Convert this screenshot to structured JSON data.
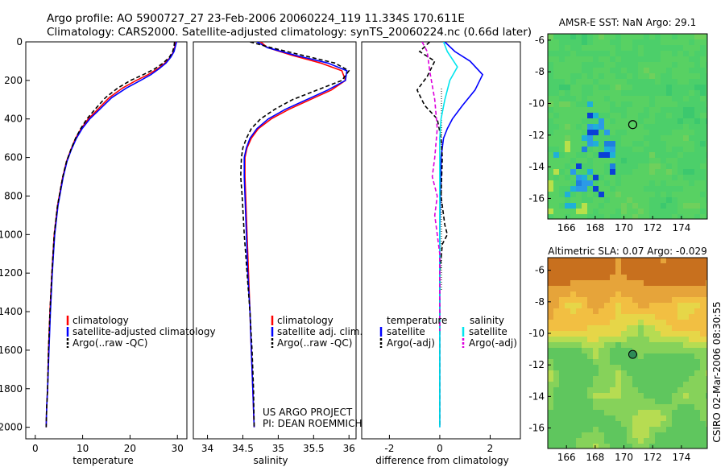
{
  "header": {
    "line1": "Argo profile: AO 5900727_27 23-Feb-2006 20060224_119 11.334S 170.611E",
    "line2": "Climatology: CARS2000. Satellite-adjusted climatology: synTS_20060224.nc (0.66d later)"
  },
  "side_label": "CSIRO 02-Mar-2006 08:30:55",
  "chart_data": [
    {
      "type": "line",
      "xlabel": "temperature",
      "ylabel": "",
      "xlim": [
        -2,
        32
      ],
      "ylim": [
        2060,
        0
      ],
      "xticks": [
        0,
        10,
        20,
        30
      ],
      "yticks": [
        0,
        200,
        400,
        600,
        800,
        1000,
        1200,
        1400,
        1600,
        1800,
        2000
      ],
      "legend": {
        "placement": "bottom-left",
        "entries": [
          "climatology",
          "satellite-adjusted climatology",
          "Argo(..raw -QC)"
        ]
      },
      "series": [
        {
          "name": "climatology",
          "color": "#ff0000",
          "dash": false,
          "x": [
            29.6,
            29.5,
            29.2,
            28.5,
            27.4,
            25.8,
            23.8,
            21.3,
            18.4,
            15.6,
            13.2,
            11.2,
            9.7,
            8.5,
            7.5,
            6.6,
            5.8,
            4.7,
            4.0,
            3.5,
            3.1,
            2.8,
            2.6,
            2.4,
            2.3
          ],
          "y": [
            0,
            20,
            50,
            80,
            110,
            140,
            170,
            200,
            240,
            290,
            350,
            400,
            450,
            500,
            560,
            620,
            700,
            850,
            1000,
            1200,
            1400,
            1600,
            1800,
            1900,
            2000
          ]
        },
        {
          "name": "satellite-adjusted climatology",
          "color": "#0000ff",
          "dash": false,
          "x": [
            29.8,
            29.6,
            29.3,
            28.6,
            27.6,
            26.1,
            24.4,
            22.2,
            19.2,
            16.1,
            13.6,
            11.5,
            9.9,
            8.7,
            7.6,
            6.7,
            5.9,
            4.8,
            4.1,
            3.6,
            3.2,
            2.9,
            2.6,
            2.4,
            2.3
          ],
          "y": [
            0,
            20,
            50,
            80,
            110,
            140,
            170,
            200,
            240,
            290,
            350,
            400,
            450,
            500,
            560,
            620,
            700,
            850,
            1000,
            1200,
            1400,
            1600,
            1800,
            1900,
            2000
          ]
        },
        {
          "name": "Argo(..raw -QC)",
          "color": "#000000",
          "dash": true,
          "x": [
            29.4,
            29.3,
            29.0,
            28.3,
            27.0,
            25.2,
            22.8,
            20.1,
            17.4,
            14.8,
            12.6,
            10.9,
            9.6,
            8.5,
            7.5,
            6.6,
            5.8,
            4.7,
            4.0,
            3.5,
            3.1,
            2.8,
            2.6,
            2.4,
            2.3
          ],
          "y": [
            0,
            20,
            50,
            80,
            110,
            140,
            170,
            200,
            240,
            290,
            350,
            400,
            450,
            500,
            560,
            620,
            700,
            850,
            1000,
            1200,
            1400,
            1600,
            1800,
            1900,
            2000
          ]
        }
      ],
      "annotations": []
    },
    {
      "type": "line",
      "xlabel": "salinity",
      "ylabel": "",
      "xlim": [
        33.8,
        36.1
      ],
      "ylim": [
        2060,
        0
      ],
      "xticks": [
        34,
        34.5,
        35,
        35.5,
        36
      ],
      "yticks": [],
      "legend": {
        "placement": "bottom-left",
        "entries": [
          "climatology",
          "satellite adj. clim.",
          "Argo(..raw -QC)"
        ]
      },
      "series": [
        {
          "name": "climatology",
          "color": "#ff0000",
          "dash": false,
          "x": [
            34.75,
            34.85,
            35.2,
            35.6,
            35.9,
            35.95,
            35.75,
            35.45,
            35.15,
            34.9,
            34.72,
            34.62,
            34.56,
            34.53,
            34.53,
            34.54,
            34.56,
            34.58,
            34.6,
            34.62,
            34.64,
            34.66
          ],
          "y": [
            0,
            30,
            70,
            110,
            150,
            200,
            250,
            300,
            350,
            400,
            450,
            500,
            550,
            600,
            700,
            800,
            1000,
            1200,
            1400,
            1600,
            1800,
            2000
          ]
        },
        {
          "name": "satellite adj. clim.",
          "color": "#0000ff",
          "dash": false,
          "x": [
            34.7,
            34.85,
            35.25,
            35.7,
            35.97,
            35.95,
            35.7,
            35.4,
            35.1,
            34.86,
            34.7,
            34.6,
            34.55,
            34.52,
            34.52,
            34.53,
            34.55,
            34.57,
            34.6,
            34.62,
            34.64,
            34.66
          ],
          "y": [
            0,
            30,
            70,
            110,
            150,
            200,
            250,
            300,
            350,
            400,
            450,
            500,
            550,
            600,
            700,
            800,
            1000,
            1200,
            1400,
            1600,
            1800,
            2000
          ]
        },
        {
          "name": "Argo(..raw -QC)",
          "color": "#000000",
          "dash": true,
          "x": [
            34.6,
            34.9,
            35.35,
            35.8,
            36.0,
            35.9,
            35.55,
            35.2,
            34.95,
            34.75,
            34.62,
            34.55,
            34.5,
            34.48,
            34.47,
            34.49,
            34.52,
            34.56,
            34.6,
            34.63,
            34.65,
            34.66
          ],
          "y": [
            0,
            30,
            70,
            110,
            150,
            200,
            250,
            300,
            350,
            400,
            450,
            500,
            550,
            600,
            700,
            800,
            1000,
            1200,
            1400,
            1600,
            1800,
            2000
          ]
        }
      ],
      "annotations": [
        "US ARGO PROJECT",
        "PI: DEAN ROEMMICH"
      ]
    },
    {
      "type": "line",
      "xlabel": "difference from climatology",
      "ylabel": "",
      "xlim": [
        -3.1,
        3.2
      ],
      "ylim": [
        2060,
        0
      ],
      "xticks": [
        -2,
        0,
        2
      ],
      "yticks": [],
      "legend": {
        "placement": "bottom",
        "headers": [
          "temperature",
          "salinity"
        ],
        "entries": [
          "satellite",
          "Argo(-adj)",
          "satellite",
          "Argo(-adj)"
        ]
      },
      "series": [
        {
          "name": "satellite",
          "group": "temperature",
          "color": "#0000ff",
          "dash": false,
          "x": [
            0.2,
            0.6,
            1.2,
            1.7,
            1.4,
            0.9,
            0.5,
            0.3,
            0.15,
            0.05,
            0.02,
            0.0,
            0.0,
            0.0,
            0.0
          ],
          "y": [
            0,
            50,
            100,
            170,
            250,
            330,
            400,
            450,
            500,
            600,
            800,
            1000,
            1400,
            1800,
            2000
          ]
        },
        {
          "name": "Argo(-adj)",
          "group": "temperature",
          "color": "#000000",
          "dash": true,
          "x": [
            -0.4,
            -0.8,
            -0.2,
            -0.5,
            -0.9,
            -0.6,
            -0.1,
            0.05,
            0.1,
            0.05,
            0.2,
            0.3,
            0.1,
            0.0,
            0.0,
            0.0
          ],
          "y": [
            0,
            50,
            100,
            180,
            250,
            330,
            400,
            500,
            600,
            800,
            950,
            1000,
            1050,
            1200,
            1600,
            2000
          ]
        },
        {
          "name": "satellite",
          "group": "salinity",
          "color": "#00e5ee",
          "dash": false,
          "x": [
            0.15,
            0.3,
            0.7,
            0.4,
            0.2,
            0.05,
            0.0,
            0.0,
            0.0,
            0.0,
            0.0
          ],
          "y": [
            0,
            50,
            130,
            200,
            300,
            400,
            500,
            700,
            1000,
            1500,
            2000
          ]
        },
        {
          "name": "Argo(-adj)",
          "group": "salinity",
          "color": "#dd00dd",
          "dash": true,
          "x": [
            -0.7,
            -0.5,
            -0.4,
            -0.2,
            -0.1,
            -0.2,
            -0.3,
            -0.1,
            -0.2,
            -0.1,
            0.0,
            0.0
          ],
          "y": [
            0,
            50,
            150,
            300,
            450,
            600,
            700,
            800,
            900,
            1000,
            1100,
            1500
          ]
        }
      ],
      "annotations": []
    },
    {
      "type": "heatmap",
      "title": "AMSR-E SST: NaN Argo: 29.1",
      "xlim": [
        164.7,
        175.8
      ],
      "ylim": [
        -17.3,
        -5.6
      ],
      "xticks": [
        166,
        168,
        170,
        172,
        174
      ],
      "yticks": [
        -6,
        -8,
        -10,
        -12,
        -14,
        -16
      ],
      "marker": {
        "lon": 170.611,
        "lat": -11.334
      }
    },
    {
      "type": "heatmap",
      "title": "Altimetric SLA: 0.07 Argo: -0.029",
      "xlim": [
        164.7,
        175.8
      ],
      "ylim": [
        -17.3,
        -5.2
      ],
      "xticks": [
        166,
        168,
        170,
        172,
        174
      ],
      "yticks": [
        -6,
        -8,
        -10,
        -12,
        -14,
        -16
      ],
      "marker": {
        "lon": 170.611,
        "lat": -11.334
      }
    }
  ]
}
